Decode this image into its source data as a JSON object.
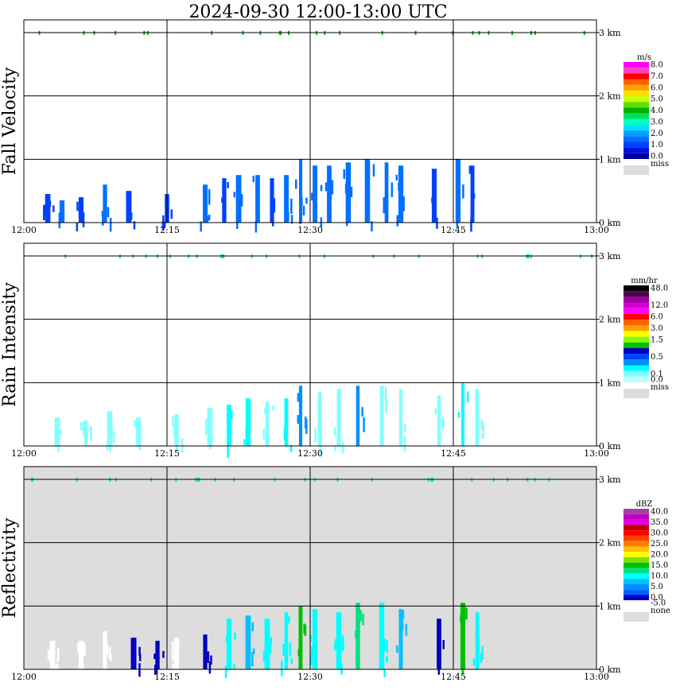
{
  "title": "2024-09-30  12:00-13:00 UTC",
  "chart_data": [
    {
      "type": "heatmap",
      "panel": "Fall Velocity",
      "ylabel": "Fall Velocity",
      "x_ticks": [
        "12:00",
        "12:15",
        "12:30",
        "12:45",
        "13:00"
      ],
      "y_ticks": [
        "0 km",
        "1 km",
        "2 km",
        "3 km"
      ],
      "xlim": [
        "12:00",
        "13:00"
      ],
      "ylim_km": [
        0,
        3.2
      ],
      "grid": true,
      "legend": {
        "unit": "m/s",
        "placement": "right",
        "entries": [
          {
            "label": "8.0",
            "color": "#ff00ff"
          },
          {
            "label": "",
            "color": "#ff40c0"
          },
          {
            "label": "7.0",
            "color": "#ff0000"
          },
          {
            "label": "",
            "color": "#ff6000"
          },
          {
            "label": "6.0",
            "color": "#ffa000"
          },
          {
            "label": "",
            "color": "#ffe000"
          },
          {
            "label": "5.0",
            "color": "#c8ff00"
          },
          {
            "label": "",
            "color": "#60e000"
          },
          {
            "label": "4.0",
            "color": "#00b000"
          },
          {
            "label": "",
            "color": "#00e060"
          },
          {
            "label": "3.0",
            "color": "#00ffc0"
          },
          {
            "label": "",
            "color": "#00e0ff"
          },
          {
            "label": "2.0",
            "color": "#00a0ff"
          },
          {
            "label": "",
            "color": "#0070ff"
          },
          {
            "label": "1.0",
            "color": "#0040ff"
          },
          {
            "label": "",
            "color": "#0010e0"
          },
          {
            "label": "0.0",
            "color": "#0000a0"
          }
        ],
        "missing_label": "miss",
        "missing_color": "#dddddd"
      },
      "cells": [
        {
          "minute": 2.5,
          "top_km": 0.45,
          "color": "#0040ff"
        },
        {
          "minute": 4.0,
          "top_km": 0.35,
          "color": "#0070ff"
        },
        {
          "minute": 6.0,
          "top_km": 0.4,
          "color": "#0040ff"
        },
        {
          "minute": 8.5,
          "top_km": 0.6,
          "color": "#0070ff"
        },
        {
          "minute": 11.0,
          "top_km": 0.5,
          "color": "#0040ff"
        },
        {
          "minute": 15.0,
          "top_km": 0.45,
          "color": "#0040ff"
        },
        {
          "minute": 19.0,
          "top_km": 0.6,
          "color": "#0070ff"
        },
        {
          "minute": 21.0,
          "top_km": 0.7,
          "color": "#0040ff"
        },
        {
          "minute": 22.5,
          "top_km": 0.75,
          "color": "#0070ff"
        },
        {
          "minute": 24.5,
          "top_km": 0.75,
          "color": "#0070ff"
        },
        {
          "minute": 26.0,
          "top_km": 0.7,
          "color": "#0040ff"
        },
        {
          "minute": 27.5,
          "top_km": 0.75,
          "color": "#0070ff"
        },
        {
          "minute": 29.0,
          "top_km": 1.0,
          "color": "#0070ff"
        },
        {
          "minute": 30.5,
          "top_km": 0.9,
          "color": "#0070ff"
        },
        {
          "minute": 32.0,
          "top_km": 0.9,
          "color": "#0070ff"
        },
        {
          "minute": 34.0,
          "top_km": 0.95,
          "color": "#0070ff"
        },
        {
          "minute": 36.0,
          "top_km": 1.0,
          "color": "#0070ff"
        },
        {
          "minute": 38.0,
          "top_km": 0.95,
          "color": "#0070ff"
        },
        {
          "minute": 39.5,
          "top_km": 0.9,
          "color": "#0070ff"
        },
        {
          "minute": 43.0,
          "top_km": 0.85,
          "color": "#0040ff"
        },
        {
          "minute": 45.5,
          "top_km": 1.0,
          "color": "#0070ff"
        },
        {
          "minute": 47.0,
          "top_km": 0.9,
          "color": "#0040ff"
        }
      ]
    },
    {
      "type": "heatmap",
      "panel": "Rain Intensity",
      "ylabel": "Rain Intensity",
      "x_ticks": [
        "12:00",
        "12:15",
        "12:30",
        "12:45",
        "13:00"
      ],
      "y_ticks": [
        "0 km",
        "1 km",
        "2 km",
        "3 km"
      ],
      "xlim": [
        "12:00",
        "13:00"
      ],
      "ylim_km": [
        0,
        3.2
      ],
      "grid": true,
      "legend": {
        "unit": "mm/hr",
        "placement": "right",
        "entries": [
          {
            "label": "48.0",
            "color": "#000000"
          },
          {
            "label": "",
            "color": "#500050"
          },
          {
            "label": "",
            "color": "#a000a0"
          },
          {
            "label": "12.0",
            "color": "#d000d0"
          },
          {
            "label": "",
            "color": "#ff00ff"
          },
          {
            "label": "6.0",
            "color": "#ff0000"
          },
          {
            "label": "",
            "color": "#ff6000"
          },
          {
            "label": "3.0",
            "color": "#ffa000"
          },
          {
            "label": "",
            "color": "#ffff00"
          },
          {
            "label": "1.5",
            "color": "#80ff00"
          },
          {
            "label": "",
            "color": "#00c000"
          },
          {
            "label": "",
            "color": "#0000c0"
          },
          {
            "label": "0.5",
            "color": "#0040ff"
          },
          {
            "label": "",
            "color": "#0090ff"
          },
          {
            "label": "",
            "color": "#00ffff"
          },
          {
            "label": "0.1",
            "color": "#80ffff"
          },
          {
            "label": "0.0",
            "color": "#c0ffff"
          }
        ],
        "missing_label": "miss",
        "missing_color": "#dddddd"
      },
      "cells": [
        {
          "minute": 3.5,
          "top_km": 0.45,
          "color": "#80ffff"
        },
        {
          "minute": 6.5,
          "top_km": 0.4,
          "color": "#80ffff"
        },
        {
          "minute": 9.0,
          "top_km": 0.55,
          "color": "#80ffff"
        },
        {
          "minute": 12.0,
          "top_km": 0.45,
          "color": "#80ffff"
        },
        {
          "minute": 16.0,
          "top_km": 0.5,
          "color": "#80ffff"
        },
        {
          "minute": 19.5,
          "top_km": 0.6,
          "color": "#80ffff"
        },
        {
          "minute": 21.5,
          "top_km": 0.65,
          "color": "#00ffff"
        },
        {
          "minute": 23.5,
          "top_km": 0.75,
          "color": "#00ffff"
        },
        {
          "minute": 25.5,
          "top_km": 0.7,
          "color": "#80ffff"
        },
        {
          "minute": 27.5,
          "top_km": 0.75,
          "color": "#00ffff"
        },
        {
          "minute": 29.0,
          "top_km": 0.95,
          "color": "#0090ff"
        },
        {
          "minute": 31.0,
          "top_km": 0.85,
          "color": "#80ffff"
        },
        {
          "minute": 33.0,
          "top_km": 0.9,
          "color": "#80ffff"
        },
        {
          "minute": 35.0,
          "top_km": 0.95,
          "color": "#0090ff"
        },
        {
          "minute": 37.5,
          "top_km": 0.95,
          "color": "#80ffff"
        },
        {
          "minute": 39.5,
          "top_km": 0.9,
          "color": "#80ffff"
        },
        {
          "minute": 43.5,
          "top_km": 0.8,
          "color": "#80ffff"
        },
        {
          "minute": 46.0,
          "top_km": 1.0,
          "color": "#00ffff"
        },
        {
          "minute": 47.5,
          "top_km": 0.9,
          "color": "#80ffff"
        }
      ]
    },
    {
      "type": "heatmap",
      "panel": "Reflectivity",
      "ylabel": "Reflectivity",
      "x_ticks": [
        "12:00",
        "12:15",
        "12:30",
        "12:45",
        "13:00"
      ],
      "y_ticks": [
        "0 km",
        "1 km",
        "2 km",
        "3 km"
      ],
      "xlim": [
        "12:00",
        "13:00"
      ],
      "ylim_km": [
        0,
        3.2
      ],
      "grid": true,
      "background_color": "#dddddd",
      "legend": {
        "unit": "dBZ",
        "placement": "right",
        "entries": [
          {
            "label": "40.0",
            "color": "#a040a0"
          },
          {
            "label": "",
            "color": "#c000c0"
          },
          {
            "label": "35.0",
            "color": "#e000e0"
          },
          {
            "label": "",
            "color": "#c00000"
          },
          {
            "label": "30.0",
            "color": "#ff0000"
          },
          {
            "label": "",
            "color": "#ff4000"
          },
          {
            "label": "25.0",
            "color": "#ff8000"
          },
          {
            "label": "",
            "color": "#ffc000"
          },
          {
            "label": "20.0",
            "color": "#ffff00"
          },
          {
            "label": "",
            "color": "#80e000"
          },
          {
            "label": "15.0",
            "color": "#00c000"
          },
          {
            "label": "",
            "color": "#00e080"
          },
          {
            "label": "10.0",
            "color": "#00ffff"
          },
          {
            "label": "",
            "color": "#00c0ff"
          },
          {
            "label": "5.0",
            "color": "#0090ff"
          },
          {
            "label": "",
            "color": "#0060ff"
          },
          {
            "label": "0.0",
            "color": "#0000c0"
          },
          {
            "label": "-5.0",
            "color": "#ffffff"
          }
        ],
        "missing_label": "none",
        "missing_color": "#dddddd"
      },
      "cells": [
        {
          "minute": 3.0,
          "top_km": 0.45,
          "color": "#ffffff"
        },
        {
          "minute": 6.0,
          "top_km": 0.45,
          "color": "#ffffff"
        },
        {
          "minute": 8.5,
          "top_km": 0.6,
          "color": "#ffffff"
        },
        {
          "minute": 11.5,
          "top_km": 0.5,
          "color": "#0000c0"
        },
        {
          "minute": 14.0,
          "top_km": 0.45,
          "color": "#0000c0"
        },
        {
          "minute": 16.0,
          "top_km": 0.5,
          "color": "#ffffff"
        },
        {
          "minute": 19.0,
          "top_km": 0.55,
          "color": "#0000c0"
        },
        {
          "minute": 21.5,
          "top_km": 0.8,
          "color": "#00ffff"
        },
        {
          "minute": 23.5,
          "top_km": 0.85,
          "color": "#00c0ff"
        },
        {
          "minute": 25.5,
          "top_km": 0.8,
          "color": "#00ffff"
        },
        {
          "minute": 27.5,
          "top_km": 0.9,
          "color": "#00ffff"
        },
        {
          "minute": 29.0,
          "top_km": 1.0,
          "color": "#00c000"
        },
        {
          "minute": 30.5,
          "top_km": 0.95,
          "color": "#00ffff"
        },
        {
          "minute": 33.0,
          "top_km": 0.9,
          "color": "#00ffff"
        },
        {
          "minute": 35.0,
          "top_km": 1.05,
          "color": "#00e080"
        },
        {
          "minute": 37.5,
          "top_km": 1.05,
          "color": "#00ffff"
        },
        {
          "minute": 39.5,
          "top_km": 0.95,
          "color": "#00c0ff"
        },
        {
          "minute": 43.5,
          "top_km": 0.8,
          "color": "#0000c0"
        },
        {
          "minute": 46.0,
          "top_km": 1.05,
          "color": "#00c000"
        },
        {
          "minute": 47.5,
          "top_km": 0.9,
          "color": "#00ffff"
        }
      ]
    }
  ]
}
